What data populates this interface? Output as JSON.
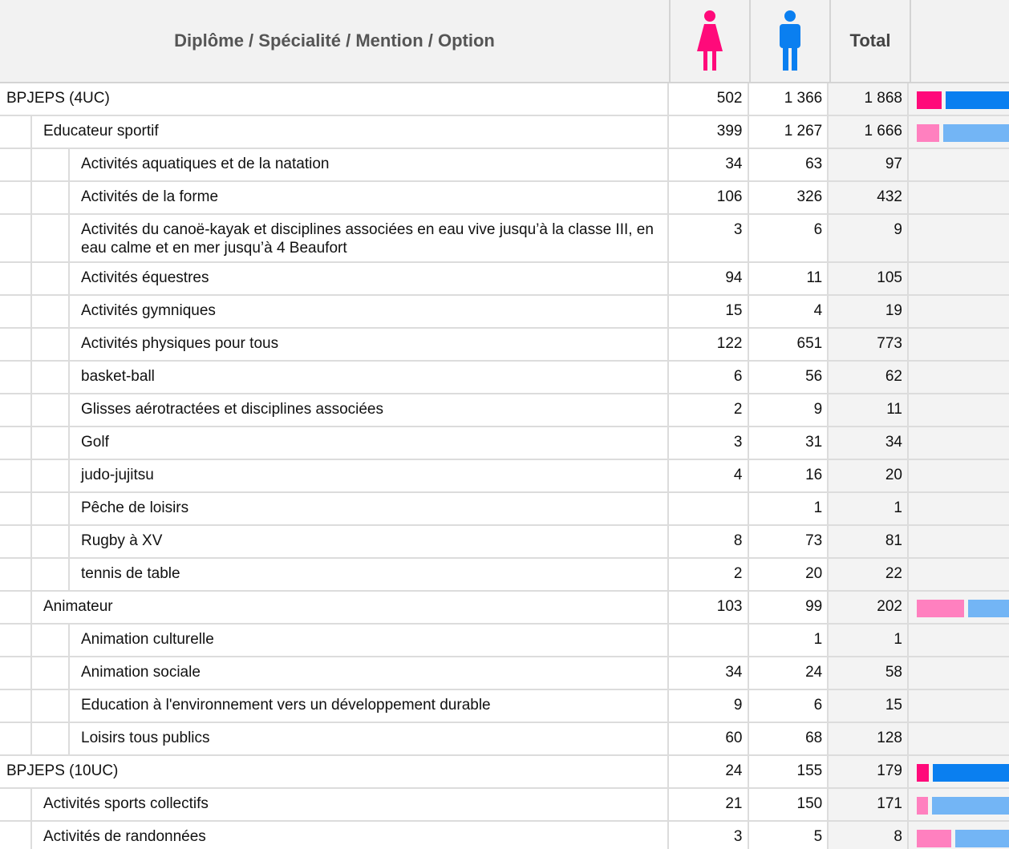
{
  "header": {
    "label": "Diplôme / Spécialité / Mention / Option",
    "total": "Total"
  },
  "rows": [
    {
      "level": 0,
      "label": "BPJEPS (4UC)",
      "female": "502",
      "male": "1 366",
      "total": "1 868"
    },
    {
      "level": 1,
      "label": "Educateur sportif",
      "female": "399",
      "male": "1 267",
      "total": "1 666"
    },
    {
      "level": 2,
      "label": "Activités aquatiques et de la natation",
      "female": "34",
      "male": "63",
      "total": "97"
    },
    {
      "level": 2,
      "label": "Activités de la forme",
      "female": "106",
      "male": "326",
      "total": "432"
    },
    {
      "level": 2,
      "label": "Activités du canoë-kayak et disciplines associées en eau vive jusqu’à la classe III, en eau calme et en mer jusqu’à 4 Beaufort",
      "female": "3",
      "male": "6",
      "total": "9"
    },
    {
      "level": 2,
      "label": "Activités équestres",
      "female": "94",
      "male": "11",
      "total": "105"
    },
    {
      "level": 2,
      "label": "Activités gymniques",
      "female": "15",
      "male": "4",
      "total": "19"
    },
    {
      "level": 2,
      "label": "Activités physiques pour tous",
      "female": "122",
      "male": "651",
      "total": "773"
    },
    {
      "level": 2,
      "label": "basket-ball",
      "female": "6",
      "male": "56",
      "total": "62"
    },
    {
      "level": 2,
      "label": "Glisses aérotractées et disciplines associées",
      "female": "2",
      "male": "9",
      "total": "11"
    },
    {
      "level": 2,
      "label": "Golf",
      "female": "3",
      "male": "31",
      "total": "34"
    },
    {
      "level": 2,
      "label": "judo-jujitsu",
      "female": "4",
      "male": "16",
      "total": "20"
    },
    {
      "level": 2,
      "label": "Pêche de loisirs",
      "female": null,
      "male": "1",
      "total": "1"
    },
    {
      "level": 2,
      "label": "Rugby à XV",
      "female": "8",
      "male": "73",
      "total": "81"
    },
    {
      "level": 2,
      "label": "tennis de table",
      "female": "2",
      "male": "20",
      "total": "22"
    },
    {
      "level": 1,
      "label": "Animateur",
      "female": "103",
      "male": "99",
      "total": "202"
    },
    {
      "level": 2,
      "label": "Animation culturelle",
      "female": null,
      "male": "1",
      "total": "1"
    },
    {
      "level": 2,
      "label": "Animation sociale",
      "female": "34",
      "male": "24",
      "total": "58"
    },
    {
      "level": 2,
      "label": "Education à l'environnement vers un développement durable",
      "female": "9",
      "male": "6",
      "total": "15"
    },
    {
      "level": 2,
      "label": "Loisirs tous publics",
      "female": "60",
      "male": "68",
      "total": "128"
    },
    {
      "level": 0,
      "label": "BPJEPS (10UC)",
      "female": "24",
      "male": "155",
      "total": "179"
    },
    {
      "level": 1,
      "label": "Activités sports collectifs",
      "female": "21",
      "male": "150",
      "total": "171"
    },
    {
      "level": 1,
      "label": "Activités de randonnées",
      "female": "3",
      "male": "5",
      "total": "8"
    }
  ]
}
